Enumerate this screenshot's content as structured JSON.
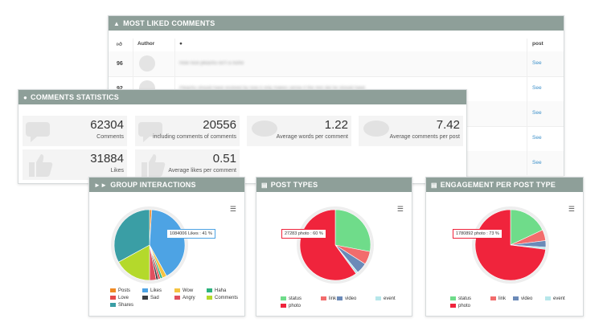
{
  "liked": {
    "title": "MOST LIKED COMMENTS",
    "col_likes_icon": "thumbs-up-icon",
    "col_author": "Author",
    "col_comment_icon": "comment-icon",
    "col_post": "post",
    "rows": [
      {
        "likes": "96",
        "text": "How nice pikachu isn't a nishe",
        "post": "See"
      },
      {
        "likes": "92",
        "text": "Pikachu should have evolved by now it only makes sense if the rest did he should have",
        "post": "See"
      },
      {
        "likes": "",
        "text": "",
        "post": "See"
      },
      {
        "likes": "",
        "text": "",
        "post": "See"
      },
      {
        "likes": "",
        "text": "",
        "post": "See"
      }
    ]
  },
  "stats": {
    "title": "COMMENTS STATISTICS",
    "items": [
      {
        "value": "62304",
        "label": "Comments"
      },
      {
        "value": "20556",
        "label": "including comments of comments"
      },
      {
        "value": "1.22",
        "label": "Average words per comment"
      },
      {
        "value": "7.42",
        "label": "Average comments per post"
      },
      {
        "value": "31884",
        "label": "Likes"
      },
      {
        "value": "0.51",
        "label": "Average likes per comment"
      }
    ]
  },
  "panels": {
    "group": {
      "title": "GROUP INTERACTIONS",
      "tooltip": "1084006 Likes : 41 %"
    },
    "types": {
      "title": "POST TYPES",
      "tooltip": "27283 photo : 60 %"
    },
    "engage": {
      "title": "ENGAGEMENT PER POST TYPE",
      "tooltip": "1780892 photo : 73 %"
    }
  },
  "chart_data": [
    {
      "type": "pie",
      "title": "GROUP INTERACTIONS",
      "labels": [
        "Posts",
        "Likes",
        "Wow",
        "Haha",
        "Love",
        "Sad",
        "Angry",
        "Comments",
        "Shares"
      ],
      "values": [
        1,
        41,
        2,
        1,
        1,
        1,
        3,
        17,
        33
      ],
      "colors": [
        "#f08a24",
        "#4da3e4",
        "#f5c342",
        "#2cb37d",
        "#e54b4b",
        "#3c4043",
        "#e0505e",
        "#b4d92b",
        "#3a9ea5"
      ]
    },
    {
      "type": "pie",
      "title": "POST TYPES",
      "labels": [
        "status",
        "link",
        "video",
        "event",
        "photo"
      ],
      "values": [
        28,
        6,
        5,
        1,
        60
      ],
      "colors": [
        "#6fdc8a",
        "#f26c6c",
        "#6b8ab8",
        "#b6e6ea",
        "#f0243c"
      ]
    },
    {
      "type": "pie",
      "title": "ENGAGEMENT PER POST TYPE",
      "labels": [
        "status",
        "link",
        "video",
        "event",
        "photo"
      ],
      "values": [
        18,
        5,
        3,
        1,
        73
      ],
      "colors": [
        "#6fdc8a",
        "#f26c6c",
        "#6b8ab8",
        "#b6e6ea",
        "#f0243c"
      ]
    }
  ]
}
